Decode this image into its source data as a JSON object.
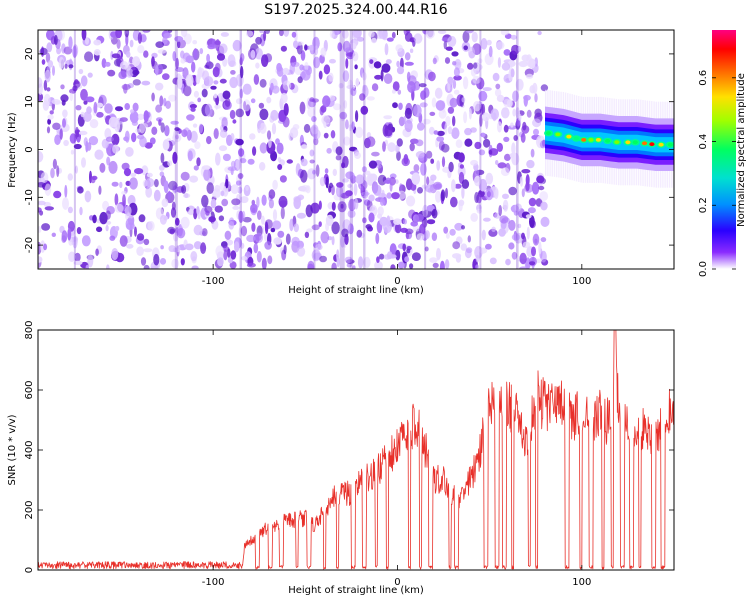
{
  "chart_data": [
    {
      "id": "spectrogram",
      "type": "heatmap",
      "title": "S197.2025.324.00.44.R16",
      "xlabel": "Height of straight line (km)",
      "ylabel": "Frequency (Hz)",
      "xlim": [
        -195,
        150
      ],
      "ylim": [
        -25,
        25
      ],
      "x_ticks": [
        -100,
        0,
        100
      ],
      "y_ticks": [
        -20,
        -10,
        0,
        10,
        20
      ],
      "noise_region_x": [
        -195,
        80
      ],
      "signal_region_x": [
        80,
        150
      ],
      "signal_center_hz": [
        [
          80,
          3.5
        ],
        [
          90,
          3
        ],
        [
          100,
          2
        ],
        [
          110,
          2
        ],
        [
          120,
          1.5
        ],
        [
          130,
          1.5
        ],
        [
          140,
          1
        ],
        [
          150,
          1
        ]
      ],
      "colorbar": {
        "label": "Normalized spectral amplitude",
        "range": [
          0,
          0.75
        ],
        "ticks": [
          0,
          0.2,
          0.4,
          0.6
        ],
        "tick_labels": [
          "0.0",
          "0.2",
          "0.4",
          "0.6"
        ],
        "colors": [
          "#ffffff",
          "#7a00ff",
          "#0000ff",
          "#00c8ff",
          "#00ff80",
          "#80ff00",
          "#ffff00",
          "#ff8000",
          "#ff0000",
          "#ff0080"
        ]
      }
    },
    {
      "id": "snr",
      "type": "line",
      "xlabel": "Height of straight line (km)",
      "ylabel": "SNR (10 * v/v)",
      "xlim": [
        -195,
        150
      ],
      "ylim": [
        0,
        800
      ],
      "x_ticks": [
        -100,
        0,
        100
      ],
      "y_ticks": [
        0,
        200,
        400,
        600,
        800
      ],
      "color": "#e8302a",
      "envelope": {
        "x": [
          -195,
          -84,
          -83,
          -80,
          -70,
          -60,
          -50,
          -45,
          -40,
          -35,
          -30,
          -25,
          -20,
          -15,
          -10,
          -5,
          0,
          5,
          10,
          15,
          20,
          25,
          30,
          35,
          40,
          45,
          50,
          55,
          60,
          65,
          70,
          75,
          80,
          85,
          90,
          95,
          100,
          105,
          110,
          115,
          118,
          120,
          125,
          130,
          135,
          140,
          145,
          150
        ],
        "y": [
          15,
          15,
          80,
          100,
          150,
          170,
          180,
          150,
          200,
          250,
          260,
          270,
          300,
          330,
          350,
          400,
          420,
          480,
          520,
          420,
          310,
          320,
          260,
          250,
          320,
          420,
          580,
          560,
          570,
          550,
          440,
          600,
          580,
          580,
          560,
          520,
          560,
          530,
          540,
          510,
          800,
          520,
          520,
          470,
          510,
          450,
          560,
          560
        ]
      },
      "dropouts": [
        [
          -77,
          -75
        ],
        [
          -70,
          -68
        ],
        [
          -64,
          -62
        ],
        [
          -55,
          -54
        ],
        [
          -49,
          -47
        ],
        [
          -40,
          -39
        ],
        [
          -33,
          -32
        ],
        [
          -25,
          -23
        ],
        [
          -19,
          -17
        ],
        [
          -12,
          -11
        ],
        [
          -6,
          -5
        ],
        [
          6,
          7
        ],
        [
          12,
          13
        ],
        [
          17,
          19
        ],
        [
          28,
          29
        ],
        [
          31,
          33
        ],
        [
          47,
          49
        ],
        [
          53,
          55
        ],
        [
          57,
          59
        ],
        [
          62,
          63
        ],
        [
          71,
          72
        ],
        [
          75,
          76
        ],
        [
          91,
          93
        ],
        [
          99,
          100
        ],
        [
          104,
          106
        ],
        [
          111,
          112
        ],
        [
          116,
          117
        ],
        [
          121,
          123
        ],
        [
          126,
          128
        ],
        [
          131,
          132
        ],
        [
          138,
          140
        ],
        [
          143,
          145
        ]
      ]
    }
  ]
}
